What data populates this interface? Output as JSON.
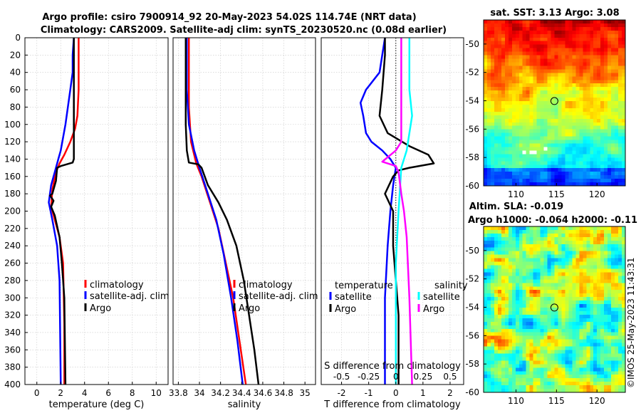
{
  "title": {
    "line1": "Argo profile: csiro 7900914_92 20-May-2023 54.02S 114.74E (NRT data)",
    "line2": "Climatology: CARS2009. Satellite-adj clim: synTS_20230520.nc (0.08d earlier)"
  },
  "footer": {
    "vertical_text": "©IMOS 25-May-2023 11:43:31"
  },
  "colors": {
    "climatology": "#ff0000",
    "satellite": "#0000ff",
    "argo": "#000000",
    "salinity_sat": "#00ffff",
    "salinity_argo": "#ff00ff"
  },
  "chart_data": [
    {
      "type": "line",
      "name": "temperature",
      "xlabel": "temperature (deg C)",
      "ylabel": "",
      "xlim": [
        -1,
        11
      ],
      "ylim": [
        0,
        400
      ],
      "xticks": [
        0,
        2,
        4,
        6,
        8,
        10
      ],
      "xtick_labels": [
        "0",
        "2",
        "4",
        "6",
        "8",
        "10"
      ],
      "yticks": [
        0,
        20,
        40,
        60,
        80,
        100,
        120,
        140,
        160,
        180,
        200,
        220,
        240,
        260,
        280,
        300,
        320,
        340,
        360,
        380,
        400
      ],
      "ytick_labels": [
        "0",
        "20",
        "40",
        "60",
        "80",
        "100",
        "120",
        "140",
        "160",
        "180",
        "200",
        "220",
        "240",
        "260",
        "280",
        "300",
        "320",
        "340",
        "360",
        "380",
        "400"
      ],
      "series": [
        {
          "name": "climatology",
          "color": "#ff0000",
          "points": [
            [
              3.5,
              0
            ],
            [
              3.5,
              60
            ],
            [
              3.4,
              90
            ],
            [
              3.2,
              105
            ],
            [
              2.8,
              120
            ],
            [
              2.3,
              135
            ],
            [
              1.9,
              145
            ],
            [
              1.6,
              155
            ],
            [
              1.3,
              175
            ],
            [
              1.2,
              195
            ],
            [
              1.5,
              210
            ],
            [
              1.9,
              230
            ],
            [
              2.2,
              260
            ],
            [
              2.3,
              330
            ],
            [
              2.3,
              400
            ]
          ]
        },
        {
          "name": "satellite-adj. clim",
          "color": "#0000ff",
          "points": [
            [
              3.1,
              0
            ],
            [
              3.0,
              20
            ],
            [
              3.0,
              40
            ],
            [
              2.8,
              60
            ],
            [
              2.6,
              80
            ],
            [
              2.4,
              100
            ],
            [
              2.2,
              115
            ],
            [
              2.0,
              130
            ],
            [
              1.8,
              140
            ],
            [
              1.5,
              155
            ],
            [
              1.2,
              170
            ],
            [
              1.0,
              190
            ],
            [
              1.3,
              210
            ],
            [
              1.7,
              240
            ],
            [
              1.9,
              280
            ],
            [
              2.0,
              400
            ]
          ]
        },
        {
          "name": "Argo",
          "color": "#000000",
          "points": [
            [
              3.1,
              0
            ],
            [
              3.1,
              60
            ],
            [
              3.1,
              100
            ],
            [
              3.1,
              140
            ],
            [
              3.0,
              144
            ],
            [
              2.0,
              148
            ],
            [
              1.7,
              150
            ],
            [
              1.6,
              165
            ],
            [
              1.3,
              180
            ],
            [
              1.1,
              182
            ],
            [
              1.4,
              188
            ],
            [
              1.2,
              195
            ],
            [
              1.5,
              205
            ],
            [
              1.9,
              230
            ],
            [
              2.1,
              260
            ],
            [
              2.3,
              300
            ],
            [
              2.4,
              400
            ]
          ]
        }
      ],
      "legend": {
        "placement": "middle-right",
        "entries": [
          "climatology",
          "satellite-adj. clim",
          "Argo"
        ]
      }
    },
    {
      "type": "line",
      "name": "salinity",
      "xlabel": "salinity",
      "xlim": [
        33.75,
        35.1
      ],
      "ylim": [
        0,
        400
      ],
      "xticks": [
        33.8,
        34,
        34.2,
        34.4,
        34.6,
        34.8,
        35
      ],
      "xtick_labels": [
        "33.8",
        "34",
        "34.2",
        "34.4",
        "34.6",
        "34.8",
        "35"
      ],
      "series": [
        {
          "name": "climatology",
          "color": "#ff0000",
          "points": [
            [
              33.9,
              0
            ],
            [
              33.9,
              80
            ],
            [
              33.92,
              120
            ],
            [
              33.97,
              145
            ],
            [
              34.02,
              160
            ],
            [
              34.1,
              190
            ],
            [
              34.18,
              220
            ],
            [
              34.25,
              260
            ],
            [
              34.32,
              300
            ],
            [
              34.38,
              350
            ],
            [
              34.44,
              400
            ]
          ]
        },
        {
          "name": "satellite-adj. clim",
          "color": "#0000ff",
          "points": [
            [
              33.88,
              0
            ],
            [
              33.88,
              60
            ],
            [
              33.9,
              100
            ],
            [
              33.95,
              130
            ],
            [
              34.0,
              150
            ],
            [
              34.08,
              180
            ],
            [
              34.16,
              210
            ],
            [
              34.23,
              250
            ],
            [
              34.3,
              300
            ],
            [
              34.36,
              350
            ],
            [
              34.41,
              400
            ]
          ]
        },
        {
          "name": "Argo",
          "color": "#000000",
          "points": [
            [
              33.87,
              0
            ],
            [
              33.87,
              100
            ],
            [
              33.88,
              130
            ],
            [
              33.9,
              144
            ],
            [
              33.99,
              146
            ],
            [
              34.02,
              150
            ],
            [
              34.08,
              170
            ],
            [
              34.18,
              190
            ],
            [
              34.26,
              210
            ],
            [
              34.35,
              240
            ],
            [
              34.42,
              280
            ],
            [
              34.47,
              320
            ],
            [
              34.52,
              360
            ],
            [
              34.56,
              400
            ]
          ]
        }
      ],
      "legend": {
        "placement": "middle-right",
        "entries": [
          "climatology",
          "satellite-adj. clim",
          "Argo"
        ]
      }
    },
    {
      "type": "line",
      "name": "difference",
      "xlabel": "T difference from climatology",
      "xlim": [
        -2.75,
        2.5
      ],
      "ylim": [
        0,
        400
      ],
      "xticks": [
        -2,
        -1,
        0,
        1,
        2
      ],
      "xtick_labels": [
        "-2",
        "-1",
        "0",
        "1",
        "2"
      ],
      "s_axis_title": "S difference from climatology",
      "s_tick_labels": [
        "-0.5",
        "-0.25",
        "0",
        "0.25",
        "0.5"
      ],
      "s_tick_positions_T_units": [
        -2.0,
        -1.0,
        0,
        1.0,
        2.0
      ],
      "series": [
        {
          "name": "temperature satellite",
          "color": "#0000ff",
          "points": [
            [
              -0.4,
              0
            ],
            [
              -0.6,
              40
            ],
            [
              -1.1,
              60
            ],
            [
              -1.3,
              75
            ],
            [
              -1.2,
              90
            ],
            [
              -1.1,
              110
            ],
            [
              -0.9,
              120
            ],
            [
              -0.5,
              130
            ],
            [
              -0.2,
              140
            ],
            [
              0,
              150
            ],
            [
              -0.1,
              170
            ],
            [
              -0.2,
              200
            ],
            [
              -0.3,
              240
            ],
            [
              -0.4,
              300
            ],
            [
              -0.4,
              400
            ]
          ]
        },
        {
          "name": "temperature Argo",
          "color": "#000000",
          "points": [
            [
              -0.4,
              0
            ],
            [
              -0.4,
              20
            ],
            [
              -0.5,
              60
            ],
            [
              -0.6,
              90
            ],
            [
              -0.3,
              110
            ],
            [
              0.5,
              125
            ],
            [
              1.2,
              135
            ],
            [
              1.4,
              145
            ],
            [
              0.5,
              150
            ],
            [
              0.1,
              153
            ],
            [
              -0.1,
              160
            ],
            [
              -0.4,
              180
            ],
            [
              -0.1,
              200
            ],
            [
              -0.1,
              240
            ],
            [
              0,
              280
            ],
            [
              0.1,
              320
            ],
            [
              0.1,
              400
            ]
          ]
        },
        {
          "name": "salinity satellite",
          "color": "#00ffff",
          "points": [
            [
              0.5,
              0
            ],
            [
              0.5,
              60
            ],
            [
              0.6,
              90
            ],
            [
              0.5,
              110
            ],
            [
              0.4,
              130
            ],
            [
              0.2,
              150
            ],
            [
              0.1,
              200
            ],
            [
              0.0,
              260
            ],
            [
              0.0,
              400
            ]
          ]
        },
        {
          "name": "salinity Argo",
          "color": "#ff00ff",
          "points": [
            [
              0.2,
              0
            ],
            [
              0.2,
              100
            ],
            [
              0.2,
              120
            ],
            [
              0,
              130
            ],
            [
              -0.5,
              143
            ],
            [
              0,
              148
            ],
            [
              0.1,
              155
            ],
            [
              0.2,
              180
            ],
            [
              0.3,
              200
            ],
            [
              0.4,
              230
            ],
            [
              0.5,
              300
            ],
            [
              0.6,
              400
            ]
          ]
        }
      ],
      "legend": {
        "placement": "middle",
        "groups": [
          {
            "title": "temperature",
            "entries": [
              "satellite",
              "Argo"
            ]
          },
          {
            "title": "salinity",
            "entries": [
              "satellite",
              "Argo"
            ]
          }
        ]
      }
    },
    {
      "type": "heatmap",
      "name": "satellite SST map",
      "title": "sat. SST: 3.13 Argo: 3.08",
      "xlim": [
        106,
        123.5
      ],
      "ylim": [
        -60,
        -48.3
      ],
      "xticks": [
        110,
        115,
        120
      ],
      "xtick_labels": [
        "110",
        "115",
        "120"
      ],
      "yticks": [
        -60,
        -58,
        -56,
        -54,
        -52,
        -50
      ],
      "ytick_labels": [
        "-60",
        "-58",
        "-56",
        "-54",
        "-52",
        "-50"
      ],
      "marker": {
        "lon": 114.74,
        "lat": -54.02
      }
    },
    {
      "type": "heatmap",
      "name": "altimetry SLA map",
      "title": "Altim. SLA: -0.019",
      "subtitle": "Argo h1000: -0.064 h2000: -0.11",
      "xlim": [
        106,
        123.5
      ],
      "ylim": [
        -60,
        -48.3
      ],
      "xticks": [
        110,
        115,
        120
      ],
      "xtick_labels": [
        "110",
        "115",
        "120"
      ],
      "yticks": [
        -60,
        -58,
        -56,
        -54,
        -52,
        -50
      ],
      "ytick_labels": [
        "-60",
        "-58",
        "-56",
        "-54",
        "-52",
        "-50"
      ],
      "marker": {
        "lon": 114.74,
        "lat": -54.02
      }
    }
  ]
}
